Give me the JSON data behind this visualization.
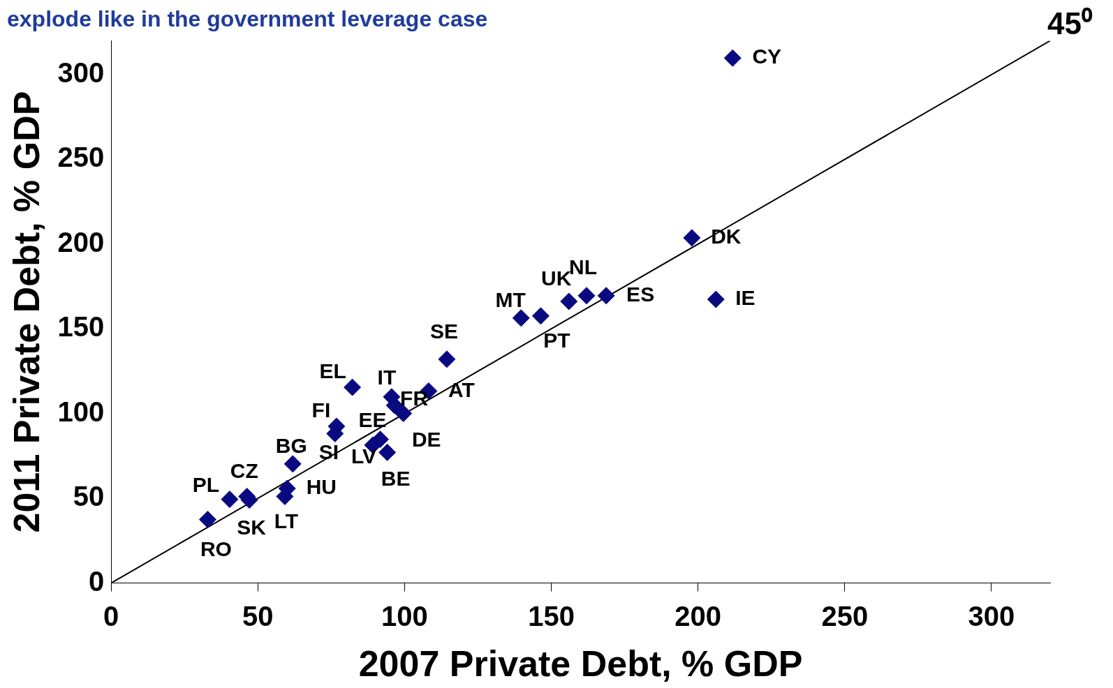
{
  "chart_data": {
    "type": "scatter",
    "title": "explode like in the government leverage case",
    "xlabel": "2007 Private Debt, % GDP",
    "ylabel": "2011 Private Debt, % GDP",
    "xlim": [
      0,
      320
    ],
    "ylim": [
      0,
      320
    ],
    "xticks": [
      0,
      50,
      100,
      150,
      200,
      250,
      300
    ],
    "yticks": [
      0,
      50,
      100,
      150,
      200,
      250,
      300
    ],
    "grid": false,
    "legend": false,
    "series": [
      {
        "name": "CY",
        "color": "#0a0a80",
        "marker": "diamond",
        "x": [
          211.8
        ],
        "values": [
          309.8
        ]
      },
      {
        "name": "DK",
        "color": "#0a0a80",
        "marker": "diamond",
        "x": [
          197.9
        ],
        "values": [
          203.7
        ]
      },
      {
        "name": "IE",
        "color": "#0a0a80",
        "marker": "diamond",
        "x": [
          206.1
        ],
        "values": [
          167.4
        ]
      },
      {
        "name": "ES",
        "color": "#0a0a80",
        "marker": "diamond",
        "x": [
          168.7
        ],
        "values": [
          169.6
        ]
      },
      {
        "name": "NL",
        "color": "#0a0a80",
        "marker": "diamond",
        "x": [
          162
        ],
        "values": [
          169.6
        ]
      },
      {
        "name": "UK",
        "color": "#0a0a80",
        "marker": "diamond",
        "x": [
          156
        ],
        "values": [
          166.2
        ]
      },
      {
        "name": "PT",
        "color": "#0a0a80",
        "marker": "diamond",
        "x": [
          146.4
        ],
        "values": [
          157.6
        ]
      },
      {
        "name": "MT",
        "color": "#0a0a80",
        "marker": "diamond",
        "x": [
          139.7
        ],
        "values": [
          156.4
        ]
      },
      {
        "name": "SE",
        "color": "#0a0a80",
        "marker": "diamond",
        "x": [
          114.4
        ],
        "values": [
          132.1
        ]
      },
      {
        "name": "AT",
        "color": "#0a0a80",
        "marker": "diamond",
        "x": [
          108.2
        ],
        "values": [
          113.3
        ]
      },
      {
        "name": "IT",
        "color": "#0a0a80",
        "marker": "diamond",
        "x": [
          95.6
        ],
        "values": [
          109.9
        ]
      },
      {
        "name": "FR",
        "color": "#0a0a80",
        "marker": "diamond",
        "x": [
          96.6
        ],
        "values": [
          104.8
        ]
      },
      {
        "name": "DE",
        "color": "#0a0a80",
        "marker": "diamond",
        "x": [
          99.6
        ],
        "values": [
          100.1
        ]
      },
      {
        "name": "EL",
        "color": "#0a0a80",
        "marker": "diamond",
        "x": [
          82.2
        ],
        "values": [
          115.5
        ]
      },
      {
        "name": "FI",
        "color": "#0a0a80",
        "marker": "diamond",
        "x": [
          76.8
        ],
        "values": [
          92.5
        ]
      },
      {
        "name": "SI",
        "color": "#0a0a80",
        "marker": "diamond",
        "x": [
          76.3
        ],
        "values": [
          88.2
        ]
      },
      {
        "name": "EE",
        "color": "#0a0a80",
        "marker": "diamond",
        "x": [
          91.7
        ],
        "values": [
          84.8
        ]
      },
      {
        "name": "LV",
        "color": "#0a0a80",
        "marker": "diamond",
        "x": [
          89.2
        ],
        "values": [
          81.4
        ]
      },
      {
        "name": "BE",
        "color": "#0a0a80",
        "marker": "diamond",
        "x": [
          94.1
        ],
        "values": [
          77.1
        ]
      },
      {
        "name": "BG",
        "color": "#0a0a80",
        "marker": "diamond",
        "x": [
          61.9
        ],
        "values": [
          70.3
        ]
      },
      {
        "name": "HU",
        "color": "#0a0a80",
        "marker": "diamond",
        "x": [
          60
        ],
        "values": [
          55.8
        ]
      },
      {
        "name": "LT",
        "color": "#0a0a80",
        "marker": "diamond",
        "x": [
          59.2
        ],
        "values": [
          51.1
        ]
      },
      {
        "name": "CZ",
        "color": "#0a0a80",
        "marker": "diamond",
        "x": [
          46.3
        ],
        "values": [
          51.1
        ]
      },
      {
        "name": "SK",
        "color": "#0a0a80",
        "marker": "diamond",
        "x": [
          47.1
        ],
        "values": [
          49
        ]
      },
      {
        "name": "PL",
        "color": "#0a0a80",
        "marker": "diamond",
        "x": [
          40.4
        ],
        "values": [
          49.4
        ]
      },
      {
        "name": "RO",
        "color": "#0a0a80",
        "marker": "diamond",
        "x": [
          32.9
        ],
        "values": [
          37.5
        ]
      },
      {
        "type": "line",
        "color": "#000000",
        "marker": "none",
        "line_style": "solid",
        "x": [
          0,
          320
        ],
        "values": [
          0,
          320
        ]
      }
    ],
    "annotations": [
      "45⁰"
    ]
  }
}
